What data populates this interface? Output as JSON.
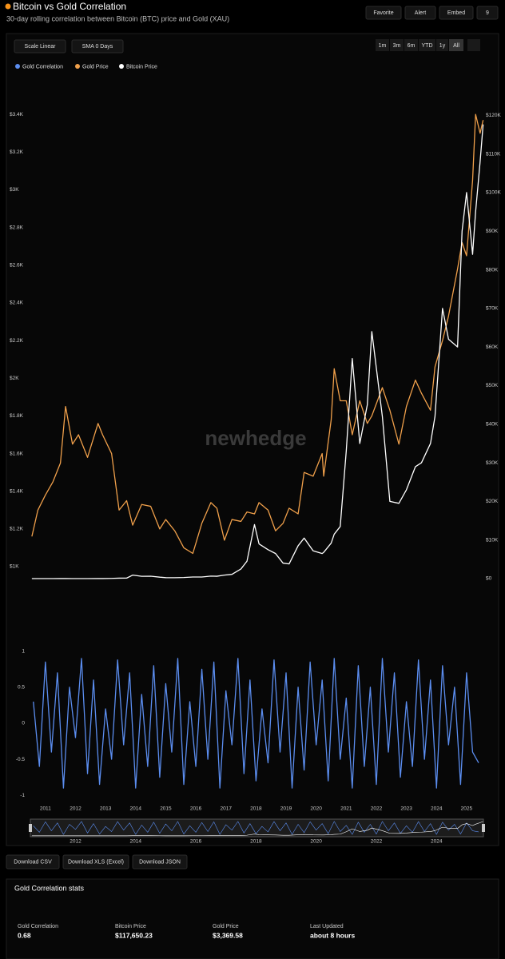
{
  "header": {
    "title": "Bitcoin vs Gold Correlation",
    "subtitle": "30-day rolling correlation between Bitcoin (BTC) price and Gold (XAU)"
  },
  "actions": [
    "Favorite",
    "Alert",
    "Embed"
  ],
  "views": 9,
  "controls": [
    "Scale Linear",
    "SMA 0 Days"
  ],
  "ranges": [
    "1m",
    "3m",
    "6m",
    "YTD",
    "1y",
    "All"
  ],
  "watermark": "newhedge",
  "chart_data": [
    {
      "type": "line",
      "grid": false,
      "x": [
        2010.55,
        2010.75,
        2011.0,
        2011.25,
        2011.5,
        2011.67,
        2011.9,
        2012.1,
        2012.4,
        2012.75,
        2012.9,
        2013.2,
        2013.45,
        2013.7,
        2013.9,
        2014.2,
        2014.5,
        2014.8,
        2015.0,
        2015.3,
        2015.6,
        2015.9,
        2016.2,
        2016.5,
        2016.7,
        2016.95,
        2017.2,
        2017.5,
        2017.7,
        2017.95,
        2018.1,
        2018.4,
        2018.65,
        2018.9,
        2019.1,
        2019.4,
        2019.6,
        2019.9,
        2020.2,
        2020.25,
        2020.5,
        2020.6,
        2020.8,
        2021.0,
        2021.2,
        2021.45,
        2021.7,
        2021.85,
        2022.2,
        2022.45,
        2022.75,
        2023.0,
        2023.3,
        2023.5,
        2023.8,
        2023.95,
        2024.2,
        2024.4,
        2024.7,
        2024.85,
        2025.0,
        2025.2,
        2025.3,
        2025.45,
        2025.55
      ],
      "xlim": [
        2010.5,
        2025.56
      ],
      "xticks": [
        2011,
        2012,
        2013,
        2014,
        2015,
        2016,
        2017,
        2018,
        2019,
        2020,
        2021,
        2022,
        2023,
        2024,
        2025
      ],
      "ylim": [
        911,
        3600
      ],
      "yticks": [
        {
          "value": 1000,
          "label": "$1K"
        },
        {
          "value": 1200,
          "label": "$1.2K"
        },
        {
          "value": 1400,
          "label": "$1.4K"
        },
        {
          "value": 1600,
          "label": "$1.6K"
        },
        {
          "value": 1800,
          "label": "$1.8K"
        },
        {
          "value": 2000,
          "label": "$2K"
        },
        {
          "value": 2200,
          "label": "$2.2K"
        },
        {
          "value": 2400,
          "label": "$2.4K"
        },
        {
          "value": 2600,
          "label": "$2.6K"
        },
        {
          "value": 2800,
          "label": "$2.8K"
        },
        {
          "value": 3000,
          "label": "$3K"
        },
        {
          "value": 3200,
          "label": "$3.2K"
        },
        {
          "value": 3400,
          "label": "$3.4K"
        }
      ],
      "y2lim": [
        -1240,
        130000
      ],
      "y2ticks": [
        {
          "value": 0,
          "label": "$0"
        },
        {
          "value": 10000,
          "label": "$10K"
        },
        {
          "value": 20000,
          "label": "$20K"
        },
        {
          "value": 30000,
          "label": "$30K"
        },
        {
          "value": 40000,
          "label": "$40K"
        },
        {
          "value": 50000,
          "label": "$50K"
        },
        {
          "value": 60000,
          "label": "$60K"
        },
        {
          "value": 70000,
          "label": "$70K"
        },
        {
          "value": 80000,
          "label": "$80K"
        },
        {
          "value": 90000,
          "label": "$90K"
        },
        {
          "value": 100000,
          "label": "$100K"
        },
        {
          "value": 110000,
          "label": "$110K"
        },
        {
          "value": 120000,
          "label": "$120K"
        }
      ],
      "series": [
        {
          "name": "Gold Price",
          "color": "#f0a04b",
          "values": [
            1160,
            1300,
            1380,
            1450,
            1550,
            1850,
            1650,
            1700,
            1580,
            1760,
            1700,
            1600,
            1300,
            1350,
            1220,
            1330,
            1320,
            1200,
            1250,
            1190,
            1100,
            1070,
            1230,
            1340,
            1310,
            1140,
            1250,
            1240,
            1290,
            1280,
            1340,
            1300,
            1190,
            1230,
            1310,
            1280,
            1500,
            1480,
            1600,
            1480,
            1780,
            2050,
            1880,
            1880,
            1700,
            1880,
            1760,
            1800,
            1950,
            1830,
            1650,
            1850,
            1990,
            1920,
            1830,
            2060,
            2200,
            2330,
            2580,
            2720,
            2650,
            3050,
            3400,
            3300,
            3370
          ]
        },
        {
          "name": "Bitcoin Price",
          "color": "#ffffff",
          "axis": "y2",
          "values": [
            0.06,
            0.2,
            0.3,
            0.8,
            15,
            10,
            3,
            5,
            6,
            11,
            13,
            50,
            120,
            130,
            900,
            600,
            630,
            380,
            250,
            230,
            280,
            420,
            420,
            650,
            610,
            900,
            1100,
            2500,
            4500,
            14000,
            9000,
            7500,
            6500,
            4000,
            3800,
            8500,
            10500,
            7200,
            6500,
            6800,
            9200,
            11500,
            13500,
            33000,
            57000,
            35000,
            45000,
            64000,
            42000,
            20000,
            19500,
            23000,
            29000,
            30000,
            35000,
            42000,
            70000,
            62000,
            60000,
            90000,
            100000,
            84000,
            95000,
            108000,
            117650
          ]
        }
      ]
    },
    {
      "type": "line",
      "grid": false,
      "x": [
        2010.6,
        2010.8,
        2011,
        2011.2,
        2011.4,
        2011.6,
        2011.8,
        2012,
        2012.2,
        2012.4,
        2012.6,
        2012.8,
        2013,
        2013.2,
        2013.4,
        2013.6,
        2013.8,
        2014,
        2014.2,
        2014.4,
        2014.6,
        2014.8,
        2015,
        2015.2,
        2015.4,
        2015.6,
        2015.8,
        2016,
        2016.2,
        2016.4,
        2016.6,
        2016.8,
        2017,
        2017.2,
        2017.4,
        2017.6,
        2017.8,
        2018,
        2018.2,
        2018.4,
        2018.6,
        2018.8,
        2019,
        2019.2,
        2019.4,
        2019.6,
        2019.8,
        2020,
        2020.2,
        2020.4,
        2020.6,
        2020.8,
        2021,
        2021.2,
        2021.4,
        2021.6,
        2021.8,
        2022,
        2022.2,
        2022.4,
        2022.6,
        2022.8,
        2023,
        2023.2,
        2023.4,
        2023.6,
        2023.8,
        2024,
        2024.2,
        2024.4,
        2024.6,
        2024.8,
        2025,
        2025.2,
        2025.4
      ],
      "xlim": [
        2010.5,
        2025.56
      ],
      "xticks": [
        2011,
        2012,
        2013,
        2014,
        2015,
        2016,
        2017,
        2018,
        2019,
        2020,
        2021,
        2022,
        2023,
        2024,
        2025
      ],
      "ylim": [
        -1.11,
        1.11
      ],
      "yticks": [
        1,
        0.5,
        0,
        -0.5,
        -1
      ],
      "series": [
        {
          "name": "Gold Correlation",
          "color": "#5b8def",
          "values": [
            0.3,
            -0.6,
            0.85,
            -0.4,
            0.7,
            -0.9,
            0.5,
            -0.2,
            0.9,
            -0.7,
            0.6,
            -0.85,
            0.2,
            -0.5,
            0.88,
            -0.3,
            0.7,
            -0.9,
            0.4,
            -0.6,
            0.8,
            -0.75,
            0.55,
            -0.4,
            0.9,
            -0.85,
            0.3,
            -0.6,
            0.75,
            -0.5,
            0.85,
            -0.9,
            0.45,
            -0.3,
            0.9,
            -0.7,
            0.6,
            -0.8,
            0.2,
            -0.55,
            0.88,
            -0.4,
            0.7,
            -0.9,
            0.5,
            -0.65,
            0.85,
            -0.3,
            0.6,
            -0.8,
            0.9,
            -0.5,
            0.35,
            -0.9,
            0.8,
            -0.6,
            0.5,
            -0.85,
            0.9,
            -0.4,
            0.7,
            -0.75,
            0.3,
            -0.6,
            0.88,
            -0.5,
            0.6,
            -0.9,
            0.8,
            -0.3,
            0.5,
            -0.85,
            0.7,
            -0.4,
            -0.55
          ]
        }
      ]
    }
  ],
  "navigator": {
    "xticks": [
      2012,
      2014,
      2016,
      2018,
      2020,
      2022,
      2024
    ]
  },
  "downloads": [
    "Download CSV",
    "Download XLS (Excel)",
    "Download JSON"
  ],
  "stats": {
    "title": "Gold Correlation stats",
    "items": [
      {
        "label": "Gold Correlation",
        "value": "0.68"
      },
      {
        "label": "Bitcoin Price",
        "value": "$117,650.23"
      },
      {
        "label": "Gold Price",
        "value": "$3,369.58"
      },
      {
        "label": "Last Updated",
        "value": "about 8 hours"
      }
    ]
  }
}
